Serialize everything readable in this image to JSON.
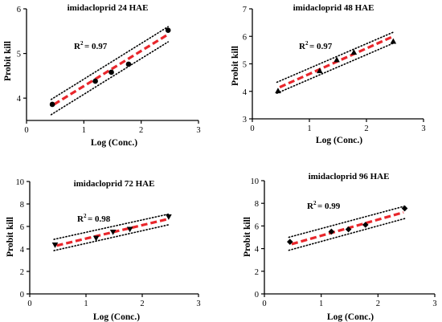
{
  "chart_data": [
    {
      "type": "scatter",
      "title": "imidacloprid 24 HAE",
      "xlabel": "Log (Conc.)",
      "ylabel": "Probit kill",
      "xlim": [
        0,
        3
      ],
      "ylim": [
        3.5,
        6
      ],
      "xticks": [
        "0",
        "1",
        "2",
        "3"
      ],
      "yticks": [
        "4",
        "5",
        "6"
      ],
      "r2_prefix": "R",
      "r2_sup": "2",
      "r2_value": "= 0.97",
      "marker": "circle",
      "points": [
        {
          "x": 0.45,
          "y": 3.86
        },
        {
          "x": 1.2,
          "y": 4.38
        },
        {
          "x": 1.48,
          "y": 4.58
        },
        {
          "x": 1.78,
          "y": 4.76
        },
        {
          "x": 2.47,
          "y": 5.52
        }
      ],
      "fit": {
        "x": [
          0.48,
          2.46
        ],
        "y": [
          3.86,
          5.42
        ]
      },
      "ci_upper": {
        "x": [
          0.43,
          2.47
        ],
        "y": [
          3.97,
          5.6
        ]
      },
      "ci_lower": {
        "x": [
          0.43,
          2.47
        ],
        "y": [
          3.63,
          5.26
        ]
      },
      "fit_color": "#e8262b",
      "ci_color": "#000000"
    },
    {
      "type": "scatter",
      "title": "imidacloprid 48 HAE",
      "xlabel": "Log (Conc.)",
      "ylabel": "Probit kill",
      "xlim": [
        0,
        3
      ],
      "ylim": [
        3,
        7
      ],
      "xticks": [
        "0",
        "1",
        "2",
        "3"
      ],
      "yticks": [
        "3",
        "4",
        "5",
        "6",
        "7"
      ],
      "r2_prefix": "R",
      "r2_sup": "2",
      "r2_value": "= 0.97",
      "marker": "triangle-up",
      "points": [
        {
          "x": 0.45,
          "y": 4.02
        },
        {
          "x": 1.18,
          "y": 4.75
        },
        {
          "x": 1.48,
          "y": 5.15
        },
        {
          "x": 1.78,
          "y": 5.42
        },
        {
          "x": 2.47,
          "y": 5.82
        }
      ],
      "fit": {
        "x": [
          0.48,
          2.45
        ],
        "y": [
          4.15,
          5.98
        ]
      },
      "ci_upper": {
        "x": [
          0.43,
          2.47
        ],
        "y": [
          4.33,
          6.15
        ]
      },
      "ci_lower": {
        "x": [
          0.43,
          2.47
        ],
        "y": [
          3.93,
          5.75
        ]
      },
      "fit_color": "#e8262b",
      "ci_color": "#000000"
    },
    {
      "type": "scatter",
      "title": "imidacloprid 72 HAE",
      "xlabel": "Log (Conc.)",
      "ylabel": "Probit kill",
      "xlim": [
        0,
        3
      ],
      "ylim": [
        0,
        10
      ],
      "xticks": [
        "0",
        "1",
        "2",
        "3"
      ],
      "yticks": [
        "0",
        "2",
        "4",
        "6",
        "8",
        "10"
      ],
      "r2_prefix": "R",
      "r2_sup": "2",
      "r2_value": "= 0.98",
      "marker": "triangle-down",
      "points": [
        {
          "x": 0.45,
          "y": 4.35
        },
        {
          "x": 1.18,
          "y": 4.95
        },
        {
          "x": 1.48,
          "y": 5.5
        },
        {
          "x": 1.78,
          "y": 5.75
        },
        {
          "x": 2.47,
          "y": 6.85
        }
      ],
      "fit": {
        "x": [
          0.48,
          2.45
        ],
        "y": [
          4.3,
          6.65
        ]
      },
      "ci_upper": {
        "x": [
          0.43,
          2.47
        ],
        "y": [
          4.85,
          7.1
        ]
      },
      "ci_lower": {
        "x": [
          0.43,
          2.47
        ],
        "y": [
          3.85,
          6.15
        ]
      },
      "fit_color": "#e8262b",
      "ci_color": "#000000"
    },
    {
      "type": "scatter",
      "title": "imidacloprid 96 HAE",
      "xlabel": "Log (Conc.)",
      "ylabel": "Probit kill",
      "xlim": [
        0,
        3
      ],
      "ylim": [
        0,
        10
      ],
      "xticks": [
        "0",
        "1",
        "2",
        "3"
      ],
      "yticks": [
        "0",
        "2",
        "4",
        "6",
        "8",
        "10"
      ],
      "r2_prefix": "R",
      "r2_sup": "2",
      "r2_value": "= 0.99",
      "marker": "diamond",
      "points": [
        {
          "x": 0.45,
          "y": 4.6
        },
        {
          "x": 1.18,
          "y": 5.5
        },
        {
          "x": 1.48,
          "y": 5.7
        },
        {
          "x": 1.78,
          "y": 6.1
        },
        {
          "x": 2.47,
          "y": 7.55
        }
      ],
      "fit": {
        "x": [
          0.48,
          2.45
        ],
        "y": [
          4.4,
          7.2
        ]
      },
      "ci_upper": {
        "x": [
          0.43,
          2.47
        ],
        "y": [
          5.0,
          7.75
        ]
      },
      "ci_lower": {
        "x": [
          0.43,
          2.47
        ],
        "y": [
          3.85,
          6.65
        ]
      },
      "fit_color": "#e8262b",
      "ci_color": "#000000"
    }
  ]
}
